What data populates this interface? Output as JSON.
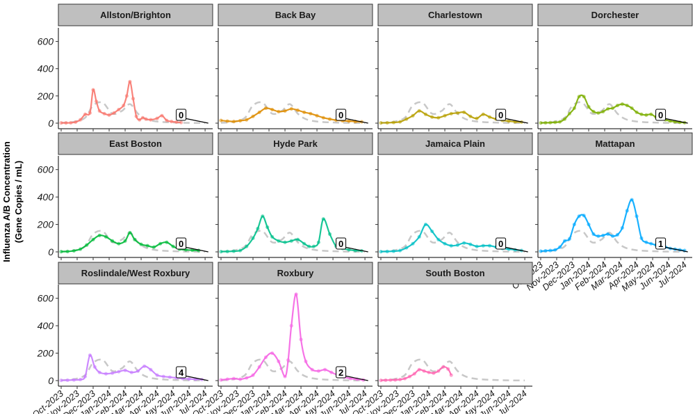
{
  "chart_data": {
    "type": "line",
    "ylabel_lines": [
      "Influenza A/B Concentration",
      "(Gene Copies / mL)"
    ],
    "ylim": [
      0,
      700
    ],
    "yticks": [
      0,
      200,
      400,
      600
    ],
    "xticks": [
      "Oct-2023",
      "Nov-2023",
      "Dec-2023",
      "Jan-2024",
      "Feb-2024",
      "Mar-2024",
      "Apr-2024",
      "May-2024",
      "Jun-2024",
      "Jul-2024"
    ],
    "xrange_months": [
      0,
      9.3
    ],
    "reference_line": {
      "style": "dashed-grey",
      "x": [
        0,
        0.8,
        1.5,
        2.0,
        2.6,
        3.2,
        3.8,
        4.3,
        4.8,
        5.3,
        6.0,
        7.0,
        8.0,
        9.0
      ],
      "y": [
        2,
        10,
        40,
        130,
        150,
        70,
        90,
        140,
        70,
        30,
        12,
        5,
        2,
        1
      ]
    },
    "panels": [
      {
        "name": "Allston/Brighton",
        "color": "#F8766D",
        "badge": "0",
        "x": [
          0,
          0.3,
          0.6,
          0.9,
          1.2,
          1.5,
          1.8,
          2.0,
          2.2,
          2.4,
          2.7,
          3.0,
          3.3,
          3.6,
          3.9,
          4.1,
          4.3,
          4.5,
          4.7,
          4.9,
          5.1,
          5.3,
          5.6,
          6.0,
          6.3,
          6.6,
          6.9,
          7.2,
          7.5
        ],
        "y": [
          2,
          2,
          3,
          8,
          25,
          65,
          75,
          245,
          160,
          90,
          70,
          60,
          75,
          100,
          130,
          200,
          305,
          180,
          50,
          25,
          40,
          30,
          25,
          35,
          55,
          20,
          12,
          8,
          5
        ]
      },
      {
        "name": "Back Bay",
        "color": "#DE8C00",
        "badge": "0",
        "x": [
          0,
          0.4,
          0.8,
          1.2,
          1.6,
          2.0,
          2.4,
          2.8,
          3.2,
          3.6,
          4.0,
          4.4,
          4.8,
          5.2,
          5.6,
          6.0,
          6.4,
          6.8,
          7.2,
          7.6,
          8.0,
          8.4,
          8.8
        ],
        "y": [
          20,
          15,
          12,
          18,
          25,
          50,
          80,
          110,
          100,
          85,
          90,
          105,
          95,
          80,
          70,
          55,
          40,
          30,
          22,
          18,
          15,
          12,
          10
        ]
      },
      {
        "name": "Charlestown",
        "color": "#B79F00",
        "badge": "0",
        "x": [
          0,
          0.4,
          0.8,
          1.2,
          1.6,
          2.0,
          2.4,
          2.8,
          3.2,
          3.6,
          4.0,
          4.4,
          4.8,
          5.2,
          5.6,
          6.0,
          6.4,
          6.8,
          7.2,
          7.6,
          8.0,
          8.4,
          8.8
        ],
        "y": [
          2,
          3,
          5,
          10,
          30,
          55,
          90,
          65,
          45,
          40,
          55,
          70,
          75,
          80,
          50,
          35,
          65,
          45,
          30,
          20,
          15,
          10,
          8
        ]
      },
      {
        "name": "Dorchester",
        "color": "#7CAE00",
        "badge": "0",
        "x": [
          0,
          0.3,
          0.6,
          0.9,
          1.2,
          1.5,
          1.8,
          2.1,
          2.4,
          2.7,
          3.0,
          3.3,
          3.6,
          3.9,
          4.2,
          4.5,
          4.8,
          5.1,
          5.4,
          5.7,
          6.0,
          6.3,
          6.6,
          6.9,
          7.2,
          7.5,
          7.8,
          8.1,
          8.4,
          8.7,
          9.0
        ],
        "y": [
          2,
          3,
          4,
          6,
          10,
          30,
          70,
          110,
          195,
          195,
          120,
          85,
          75,
          85,
          105,
          110,
          130,
          140,
          130,
          110,
          80,
          65,
          60,
          65,
          45,
          35,
          25,
          15,
          10,
          6,
          4
        ]
      },
      {
        "name": "East Boston",
        "color": "#00BA38",
        "badge": "0",
        "x": [
          0,
          0.4,
          0.8,
          1.2,
          1.6,
          2.0,
          2.4,
          2.8,
          3.2,
          3.6,
          4.0,
          4.3,
          4.6,
          5.0,
          5.4,
          5.8,
          6.2,
          6.6,
          7.0,
          7.4,
          7.8,
          8.2,
          8.6
        ],
        "y": [
          2,
          3,
          8,
          20,
          50,
          90,
          120,
          110,
          80,
          60,
          80,
          140,
          90,
          55,
          45,
          35,
          60,
          70,
          40,
          20,
          15,
          12,
          10
        ]
      },
      {
        "name": "Hyde Park",
        "color": "#00C08B",
        "badge": "0",
        "x": [
          0,
          0.4,
          0.8,
          1.2,
          1.6,
          2.0,
          2.3,
          2.6,
          2.9,
          3.2,
          3.6,
          4.0,
          4.4,
          4.8,
          5.2,
          5.5,
          5.8,
          6.1,
          6.4,
          6.8,
          7.2,
          7.6,
          8.0,
          8.4,
          8.8
        ],
        "y": [
          2,
          3,
          5,
          10,
          40,
          100,
          170,
          260,
          180,
          110,
          80,
          70,
          80,
          90,
          60,
          40,
          40,
          70,
          240,
          130,
          40,
          25,
          15,
          10,
          8
        ]
      },
      {
        "name": "Jamaica Plain",
        "color": "#00BFC4",
        "badge": "0",
        "x": [
          0,
          0.4,
          0.8,
          1.2,
          1.6,
          2.0,
          2.4,
          2.8,
          3.2,
          3.6,
          4.0,
          4.4,
          4.8,
          5.2,
          5.6,
          6.0,
          6.4,
          6.8,
          7.2,
          7.6,
          8.0,
          8.4,
          8.8
        ],
        "y": [
          2,
          3,
          5,
          10,
          30,
          60,
          110,
          200,
          150,
          90,
          60,
          45,
          50,
          65,
          55,
          40,
          45,
          45,
          35,
          25,
          20,
          15,
          10
        ]
      },
      {
        "name": "Mattapan",
        "color": "#00A9FF",
        "badge": "1",
        "x": [
          0,
          0.3,
          0.6,
          0.9,
          1.2,
          1.5,
          1.8,
          2.1,
          2.4,
          2.7,
          3.0,
          3.3,
          3.6,
          3.9,
          4.2,
          4.5,
          4.8,
          5.1,
          5.4,
          5.7,
          6.0,
          6.3,
          6.6,
          6.9,
          7.2,
          7.5,
          7.8,
          8.1,
          8.4,
          8.7,
          9.0
        ],
        "y": [
          5,
          8,
          10,
          15,
          35,
          80,
          95,
          200,
          260,
          265,
          200,
          130,
          115,
          120,
          130,
          115,
          125,
          175,
          300,
          380,
          260,
          100,
          70,
          60,
          50,
          40,
          35,
          25,
          20,
          15,
          10
        ]
      },
      {
        "name": "Roslindale/West Roxbury",
        "color": "#C77CFF",
        "badge": "4",
        "x": [
          0,
          0.4,
          0.8,
          1.2,
          1.5,
          1.8,
          2.1,
          2.4,
          2.8,
          3.2,
          3.6,
          4.0,
          4.4,
          4.8,
          5.2,
          5.6,
          6.0,
          6.4,
          6.8,
          7.2,
          7.6,
          8.0,
          8.4,
          8.8
        ],
        "y": [
          2,
          3,
          5,
          8,
          30,
          185,
          100,
          60,
          50,
          55,
          65,
          75,
          60,
          70,
          105,
          80,
          40,
          30,
          25,
          20,
          15,
          12,
          10,
          8
        ]
      },
      {
        "name": "Roxbury",
        "color": "#F564E3",
        "badge": "2",
        "x": [
          0,
          0.4,
          0.8,
          1.2,
          1.6,
          2.0,
          2.4,
          2.8,
          3.2,
          3.6,
          4.0,
          4.2,
          4.4,
          4.7,
          5.0,
          5.3,
          5.7,
          6.1,
          6.5,
          6.9,
          7.3,
          7.7,
          8.1,
          8.5,
          8.9
        ],
        "y": [
          5,
          10,
          15,
          10,
          20,
          40,
          100,
          170,
          200,
          140,
          30,
          150,
          400,
          630,
          300,
          140,
          80,
          70,
          80,
          60,
          40,
          25,
          15,
          10,
          5
        ]
      },
      {
        "name": "South Boston",
        "color": "#FF64B0",
        "badge": "",
        "x": [
          0,
          0.3,
          0.6,
          0.9,
          1.2,
          1.5,
          1.8,
          2.1,
          2.4,
          2.7,
          3.0,
          3.3,
          3.6,
          3.9,
          4.2,
          4.4
        ],
        "y": [
          2,
          3,
          4,
          5,
          8,
          15,
          30,
          50,
          80,
          70,
          60,
          55,
          70,
          100,
          85,
          40
        ]
      }
    ]
  }
}
